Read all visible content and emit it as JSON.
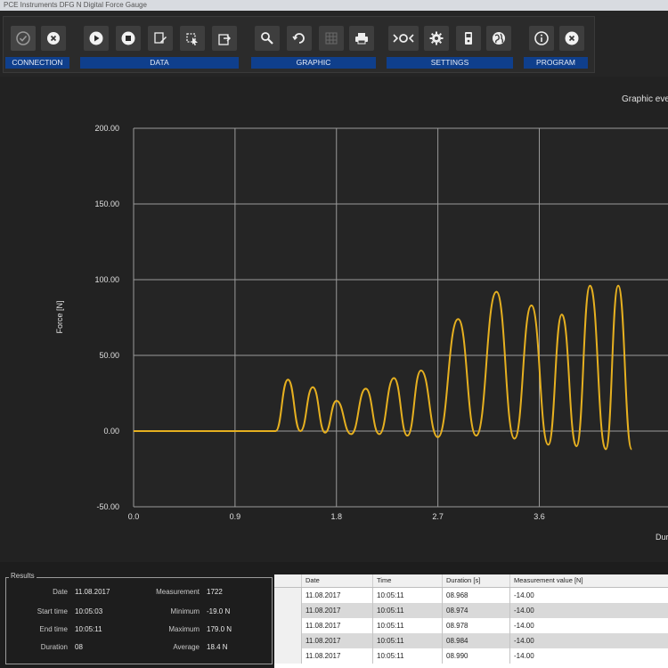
{
  "window": {
    "title": "PCE Instruments DFG N Digital Force Gauge"
  },
  "ribbon": {
    "groups": [
      {
        "label": "CONNECTION",
        "buttons": [
          "check-icon",
          "disconnect-icon"
        ]
      },
      {
        "label": "DATA",
        "buttons": [
          "play-icon",
          "stop-icon",
          "edit-icon",
          "select-icon",
          "export-icon"
        ]
      },
      {
        "label": "GRAPHIC",
        "buttons": [
          "zoom-icon",
          "reset-icon",
          "grid-icon",
          "print-icon"
        ]
      },
      {
        "label": "SETTINGS",
        "buttons": [
          "sensor-icon",
          "gear-icon",
          "device-icon",
          "language-icon"
        ]
      },
      {
        "label": "PROGRAM",
        "buttons": [
          "info-icon",
          "close-icon"
        ]
      }
    ]
  },
  "graph": {
    "title_partial": "Graphic eve"
  },
  "chart_data": {
    "type": "line",
    "ylabel": "Force [N]",
    "xlabel_partial": "Dur",
    "ylim": [
      -50,
      200
    ],
    "xlim": [
      0,
      4.9
    ],
    "yticks": [
      "200.00",
      "150.00",
      "100.00",
      "50.00",
      "0.00",
      "-50.00"
    ],
    "yticks_values": [
      200,
      150,
      100,
      50,
      0,
      -50
    ],
    "xticks": [
      "0.0",
      "0.9",
      "1.8",
      "2.7",
      "3.6"
    ],
    "xticks_values": [
      0,
      0.9,
      1.8,
      2.7,
      3.6
    ],
    "grid": true,
    "series": [
      {
        "color": "#e6b020",
        "peaks": [
          {
            "x": 1.37,
            "y": 34
          },
          {
            "x": 1.59,
            "y": 29
          },
          {
            "x": 1.8,
            "y": 20
          },
          {
            "x": 2.06,
            "y": 28
          },
          {
            "x": 2.31,
            "y": 35
          },
          {
            "x": 2.55,
            "y": 40
          },
          {
            "x": 2.88,
            "y": 74
          },
          {
            "x": 3.22,
            "y": 92
          },
          {
            "x": 3.53,
            "y": 83
          },
          {
            "x": 3.8,
            "y": 77
          },
          {
            "x": 4.05,
            "y": 96
          },
          {
            "x": 4.3,
            "y": 96
          }
        ],
        "troughs": [
          {
            "x": 1.48,
            "y": 0
          },
          {
            "x": 1.7,
            "y": -1
          },
          {
            "x": 1.93,
            "y": -2
          },
          {
            "x": 2.18,
            "y": -2
          },
          {
            "x": 2.43,
            "y": -3
          },
          {
            "x": 2.7,
            "y": -4
          },
          {
            "x": 3.04,
            "y": -3
          },
          {
            "x": 3.38,
            "y": -5
          },
          {
            "x": 3.68,
            "y": -9
          },
          {
            "x": 3.93,
            "y": -10
          },
          {
            "x": 4.19,
            "y": -12
          },
          {
            "x": 4.42,
            "y": -12
          }
        ],
        "flat_until": 1.26
      }
    ]
  },
  "results": {
    "legend": "Results",
    "date_label": "Date",
    "date": "11.08.2017",
    "start_label": "Start time",
    "start": "10:05:03",
    "end_label": "End time",
    "end": "10:05:11",
    "duration_label": "Duration",
    "duration": "08",
    "measurement_label": "Measurement",
    "measurement": "1722",
    "minimum_label": "Minimum",
    "minimum": "-19.0 N",
    "maximum_label": "Maximum",
    "maximum": "179.0 N",
    "average_label": "Average",
    "average": "18.4 N"
  },
  "table": {
    "columns": [
      "Date",
      "Time",
      "Duration [s]",
      "Measurement value [N]"
    ],
    "rows": [
      [
        "11.08.2017",
        "10:05:11",
        "08.968",
        "-14.00"
      ],
      [
        "11.08.2017",
        "10:05:11",
        "08.974",
        "-14.00"
      ],
      [
        "11.08.2017",
        "10:05:11",
        "08.978",
        "-14.00"
      ],
      [
        "11.08.2017",
        "10:05:11",
        "08.984",
        "-14.00"
      ],
      [
        "11.08.2017",
        "10:05:11",
        "08.990",
        "-14.00"
      ]
    ]
  }
}
